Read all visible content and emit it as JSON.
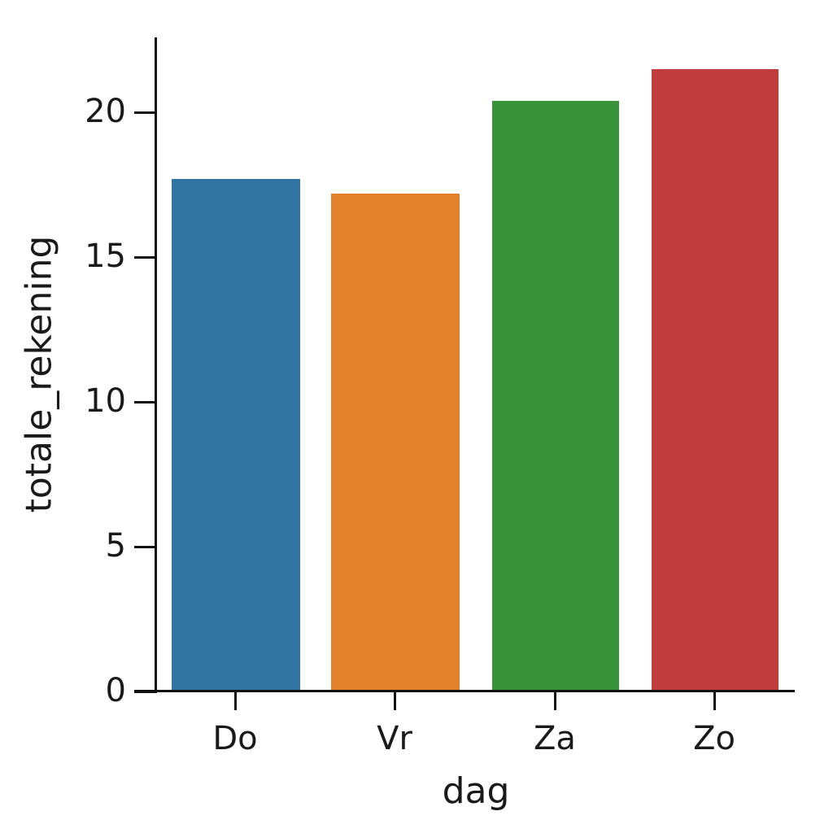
{
  "chart_data": {
    "type": "bar",
    "title": "",
    "xlabel": "dag",
    "ylabel": "totale_rekening",
    "categories": [
      "Do",
      "Vr",
      "Za",
      "Zo"
    ],
    "values": [
      17.7,
      17.2,
      20.4,
      21.5
    ],
    "colors": [
      "#3274a1",
      "#e1812c",
      "#3a923a",
      "#c03d3e"
    ],
    "ylim": [
      0,
      22.6
    ],
    "yticks": [
      "0",
      "5",
      "10",
      "15",
      "20"
    ],
    "grid": false,
    "legend": "none"
  }
}
